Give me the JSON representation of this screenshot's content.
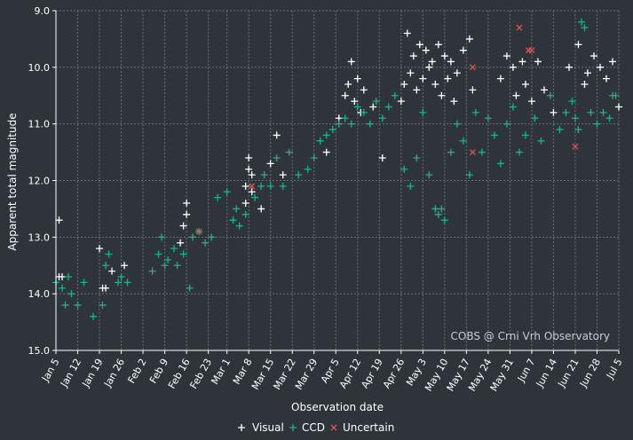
{
  "chart_data": {
    "type": "scatter",
    "xlabel": "Observation date",
    "ylabel": "Apparent total magnitude",
    "y_inverted": true,
    "ylim": [
      9.0,
      15.0
    ],
    "y_ticks": [
      "9.0",
      "10.0",
      "11.0",
      "12.0",
      "13.0",
      "14.0",
      "15.0"
    ],
    "x_ticks": [
      "Jan 5",
      "Jan 12",
      "Jan 19",
      "Jan 26",
      "Feb 2",
      "Feb 9",
      "Feb 16",
      "Feb 23",
      "Mar 1",
      "Mar 8",
      "Mar 15",
      "Mar 22",
      "Mar 29",
      "Apr 5",
      "Apr 12",
      "Apr 19",
      "Apr 26",
      "May 3",
      "May 10",
      "May 17",
      "May 24",
      "May 31",
      "Jun 7",
      "Jun 14",
      "Jun 21",
      "Jun 28",
      "Jul 5"
    ],
    "grid": true,
    "legend_position": "bottom-center",
    "annotation": "COBS @ Crni Vrh Observatory",
    "colors": {
      "Visual": "#ffffff",
      "CCD": "#1db38a",
      "Uncertain": "#e0564f",
      "background": "#2f343b",
      "grid": "#6a6f76"
    },
    "series": [
      {
        "name": "Visual",
        "marker": "+",
        "points": [
          [
            "Jan 6",
            12.7
          ],
          [
            "Jan 6",
            13.7
          ],
          [
            "Jan 7",
            13.7
          ],
          [
            "Jan 19",
            13.2
          ],
          [
            "Jan 20",
            13.9
          ],
          [
            "Jan 21",
            13.9
          ],
          [
            "Jan 23",
            13.6
          ],
          [
            "Jan 27",
            13.5
          ],
          [
            "Feb 14",
            13.1
          ],
          [
            "Feb 15",
            12.8
          ],
          [
            "Feb 16",
            12.4
          ],
          [
            "Feb 16",
            12.6
          ],
          [
            "Mar 7",
            12.4
          ],
          [
            "Mar 7",
            12.1
          ],
          [
            "Mar 8",
            11.6
          ],
          [
            "Mar 8",
            11.8
          ],
          [
            "Mar 9",
            12.2
          ],
          [
            "Mar 9",
            11.9
          ],
          [
            "Mar 12",
            12.5
          ],
          [
            "Mar 15",
            11.7
          ],
          [
            "Mar 17",
            11.2
          ],
          [
            "Mar 19",
            11.9
          ],
          [
            "Apr 2",
            11.5
          ],
          [
            "Apr 6",
            10.9
          ],
          [
            "Apr 8",
            10.5
          ],
          [
            "Apr 9",
            10.3
          ],
          [
            "Apr 10",
            9.9
          ],
          [
            "Apr 11",
            10.6
          ],
          [
            "Apr 12",
            10.2
          ],
          [
            "Apr 13",
            10.8
          ],
          [
            "Apr 14",
            10.4
          ],
          [
            "Apr 17",
            10.7
          ],
          [
            "Apr 20",
            11.6
          ],
          [
            "Apr 26",
            10.6
          ],
          [
            "Apr 27",
            10.3
          ],
          [
            "Apr 28",
            9.4
          ],
          [
            "Apr 29",
            10.1
          ],
          [
            "Apr 30",
            9.8
          ],
          [
            "May 1",
            10.4
          ],
          [
            "May 2",
            9.6
          ],
          [
            "May 3",
            10.2
          ],
          [
            "May 4",
            9.7
          ],
          [
            "May 5",
            10.0
          ],
          [
            "May 6",
            9.9
          ],
          [
            "May 7",
            10.3
          ],
          [
            "May 8",
            9.6
          ],
          [
            "May 9",
            10.5
          ],
          [
            "May 10",
            9.8
          ],
          [
            "May 11",
            10.2
          ],
          [
            "May 12",
            9.9
          ],
          [
            "May 13",
            10.6
          ],
          [
            "May 14",
            10.1
          ],
          [
            "May 16",
            9.7
          ],
          [
            "May 18",
            9.5
          ],
          [
            "May 19",
            10.4
          ],
          [
            "May 28",
            10.2
          ],
          [
            "May 30",
            9.8
          ],
          [
            "Jun 1",
            10.0
          ],
          [
            "Jun 2",
            10.5
          ],
          [
            "Jun 4",
            9.9
          ],
          [
            "Jun 5",
            10.3
          ],
          [
            "Jun 7",
            10.6
          ],
          [
            "Jun 9",
            9.9
          ],
          [
            "Jun 11",
            10.4
          ],
          [
            "Jun 14",
            10.8
          ],
          [
            "Jun 19",
            10.0
          ],
          [
            "Jun 22",
            9.6
          ],
          [
            "Jun 24",
            10.3
          ],
          [
            "Jun 25",
            10.1
          ],
          [
            "Jun 27",
            9.8
          ],
          [
            "Jun 29",
            10.0
          ],
          [
            "Jul 1",
            10.2
          ],
          [
            "Jul 3",
            9.9
          ],
          [
            "Jul 5",
            10.7
          ]
        ]
      },
      {
        "name": "CCD",
        "marker": "+",
        "points": [
          [
            "Jan 5",
            13.8
          ],
          [
            "Jan 7",
            13.9
          ],
          [
            "Jan 8",
            14.2
          ],
          [
            "Jan 9",
            13.7
          ],
          [
            "Jan 10",
            14.0
          ],
          [
            "Jan 12",
            14.2
          ],
          [
            "Jan 14",
            13.8
          ],
          [
            "Jan 17",
            14.4
          ],
          [
            "Jan 20",
            14.2
          ],
          [
            "Jan 21",
            13.5
          ],
          [
            "Jan 22",
            13.3
          ],
          [
            "Jan 25",
            13.8
          ],
          [
            "Jan 26",
            13.7
          ],
          [
            "Jan 28",
            13.8
          ],
          [
            "Feb 5",
            13.6
          ],
          [
            "Feb 7",
            13.3
          ],
          [
            "Feb 8",
            13.0
          ],
          [
            "Feb 9",
            13.5
          ],
          [
            "Feb 10",
            13.4
          ],
          [
            "Feb 12",
            13.2
          ],
          [
            "Feb 13",
            13.5
          ],
          [
            "Feb 15",
            13.3
          ],
          [
            "Feb 17",
            13.9
          ],
          [
            "Feb 18",
            13.0
          ],
          [
            "Feb 20",
            12.9
          ],
          [
            "Feb 22",
            13.1
          ],
          [
            "Feb 24",
            13.0
          ],
          [
            "Feb 26",
            12.3
          ],
          [
            "Mar 1",
            12.2
          ],
          [
            "Mar 3",
            12.7
          ],
          [
            "Mar 4",
            12.5
          ],
          [
            "Mar 5",
            12.8
          ],
          [
            "Mar 7",
            12.6
          ],
          [
            "Mar 10",
            12.3
          ],
          [
            "Mar 12",
            12.1
          ],
          [
            "Mar 13",
            11.9
          ],
          [
            "Mar 15",
            12.1
          ],
          [
            "Mar 17",
            11.6
          ],
          [
            "Mar 19",
            12.1
          ],
          [
            "Mar 21",
            11.5
          ],
          [
            "Mar 24",
            11.9
          ],
          [
            "Mar 27",
            11.8
          ],
          [
            "Mar 29",
            11.6
          ],
          [
            "Mar 31",
            11.3
          ],
          [
            "Apr 2",
            11.2
          ],
          [
            "Apr 4",
            11.1
          ],
          [
            "Apr 6",
            11.0
          ],
          [
            "Apr 8",
            10.9
          ],
          [
            "Apr 10",
            11.0
          ],
          [
            "Apr 12",
            10.7
          ],
          [
            "Apr 14",
            10.8
          ],
          [
            "Apr 16",
            11.0
          ],
          [
            "Apr 18",
            10.6
          ],
          [
            "Apr 20",
            10.9
          ],
          [
            "Apr 22",
            10.7
          ],
          [
            "Apr 24",
            10.5
          ],
          [
            "Apr 27",
            11.8
          ],
          [
            "Apr 29",
            12.1
          ],
          [
            "May 1",
            11.6
          ],
          [
            "May 3",
            10.8
          ],
          [
            "May 5",
            11.9
          ],
          [
            "May 7",
            12.5
          ],
          [
            "May 8",
            12.6
          ],
          [
            "May 9",
            12.5
          ],
          [
            "May 10",
            12.7
          ],
          [
            "May 12",
            11.5
          ],
          [
            "May 14",
            11.0
          ],
          [
            "May 16",
            11.3
          ],
          [
            "May 18",
            11.9
          ],
          [
            "May 20",
            10.8
          ],
          [
            "May 22",
            11.5
          ],
          [
            "May 24",
            10.9
          ],
          [
            "May 26",
            11.2
          ],
          [
            "May 28",
            11.7
          ],
          [
            "May 30",
            11.0
          ],
          [
            "Jun 1",
            10.7
          ],
          [
            "Jun 3",
            11.5
          ],
          [
            "Jun 5",
            11.2
          ],
          [
            "Jun 8",
            10.9
          ],
          [
            "Jun 10",
            11.3
          ],
          [
            "Jun 13",
            10.5
          ],
          [
            "Jun 16",
            11.1
          ],
          [
            "Jun 18",
            10.8
          ],
          [
            "Jun 20",
            10.6
          ],
          [
            "Jun 21",
            10.9
          ],
          [
            "Jun 22",
            11.1
          ],
          [
            "Jun 23",
            9.2
          ],
          [
            "Jun 24",
            9.3
          ],
          [
            "Jun 26",
            10.8
          ],
          [
            "Jun 28",
            11.0
          ],
          [
            "Jun 30",
            10.8
          ],
          [
            "Jul 2",
            10.9
          ],
          [
            "Jul 3",
            10.5
          ],
          [
            "Jul 4",
            10.5
          ]
        ]
      },
      {
        "name": "Uncertain",
        "marker": "x",
        "points": [
          [
            "Feb 20",
            12.9
          ],
          [
            "Mar 9",
            12.1
          ],
          [
            "May 19",
            11.5
          ],
          [
            "May 19",
            10.0
          ],
          [
            "Jun 3",
            9.3
          ],
          [
            "Jun 6",
            9.7
          ],
          [
            "Jun 7",
            9.7
          ],
          [
            "Jun 21",
            11.4
          ]
        ]
      }
    ]
  }
}
